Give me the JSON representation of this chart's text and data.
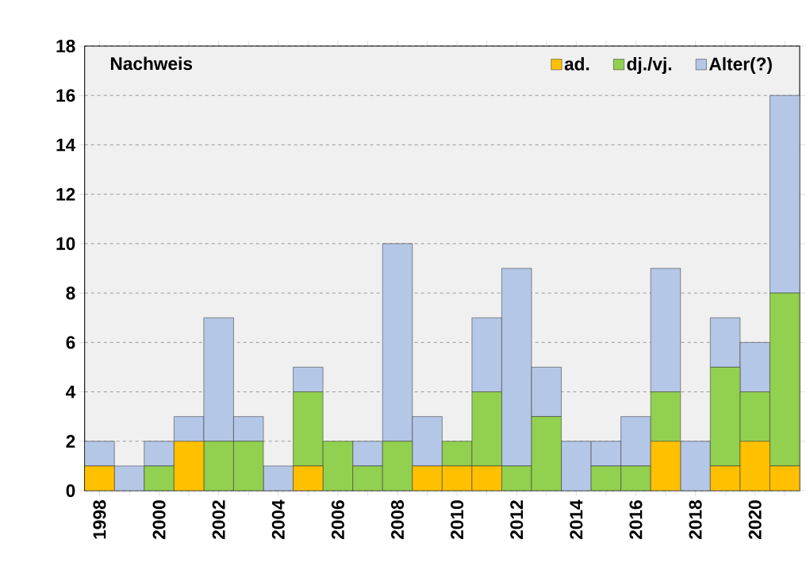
{
  "chart_data": {
    "type": "bar",
    "stacked": true,
    "title": "Nachweis",
    "categories": [
      "1998",
      null,
      "2000",
      null,
      "2002",
      null,
      "2004",
      null,
      "2006",
      null,
      "2008",
      null,
      "2010",
      null,
      "2012",
      null,
      "2014",
      null,
      "2016",
      null,
      "2018",
      null,
      "2020",
      null
    ],
    "series": [
      {
        "name": "ad.",
        "color": "#ffc000",
        "values": [
          1,
          0,
          0,
          2,
          0,
          0,
          0,
          1,
          0,
          0,
          0,
          1,
          1,
          1,
          0,
          0,
          0,
          0,
          0,
          2,
          0,
          1,
          2,
          1
        ]
      },
      {
        "name": "dj./vj.",
        "color": "#92d050",
        "values": [
          0,
          0,
          1,
          0,
          2,
          2,
          0,
          3,
          2,
          1,
          2,
          0,
          1,
          3,
          1,
          3,
          0,
          1,
          1,
          2,
          0,
          4,
          2,
          7
        ]
      },
      {
        "name": "Alter(?)",
        "color": "#b4c7e7",
        "values": [
          1,
          1,
          1,
          1,
          5,
          1,
          1,
          1,
          0,
          1,
          8,
          2,
          0,
          3,
          8,
          2,
          2,
          1,
          2,
          5,
          2,
          2,
          2,
          8
        ]
      }
    ],
    "ylim": [
      0,
      18
    ],
    "yticks": [
      0,
      2,
      4,
      6,
      8,
      10,
      12,
      14,
      16,
      18
    ],
    "grid": "y",
    "legend": "top right"
  }
}
